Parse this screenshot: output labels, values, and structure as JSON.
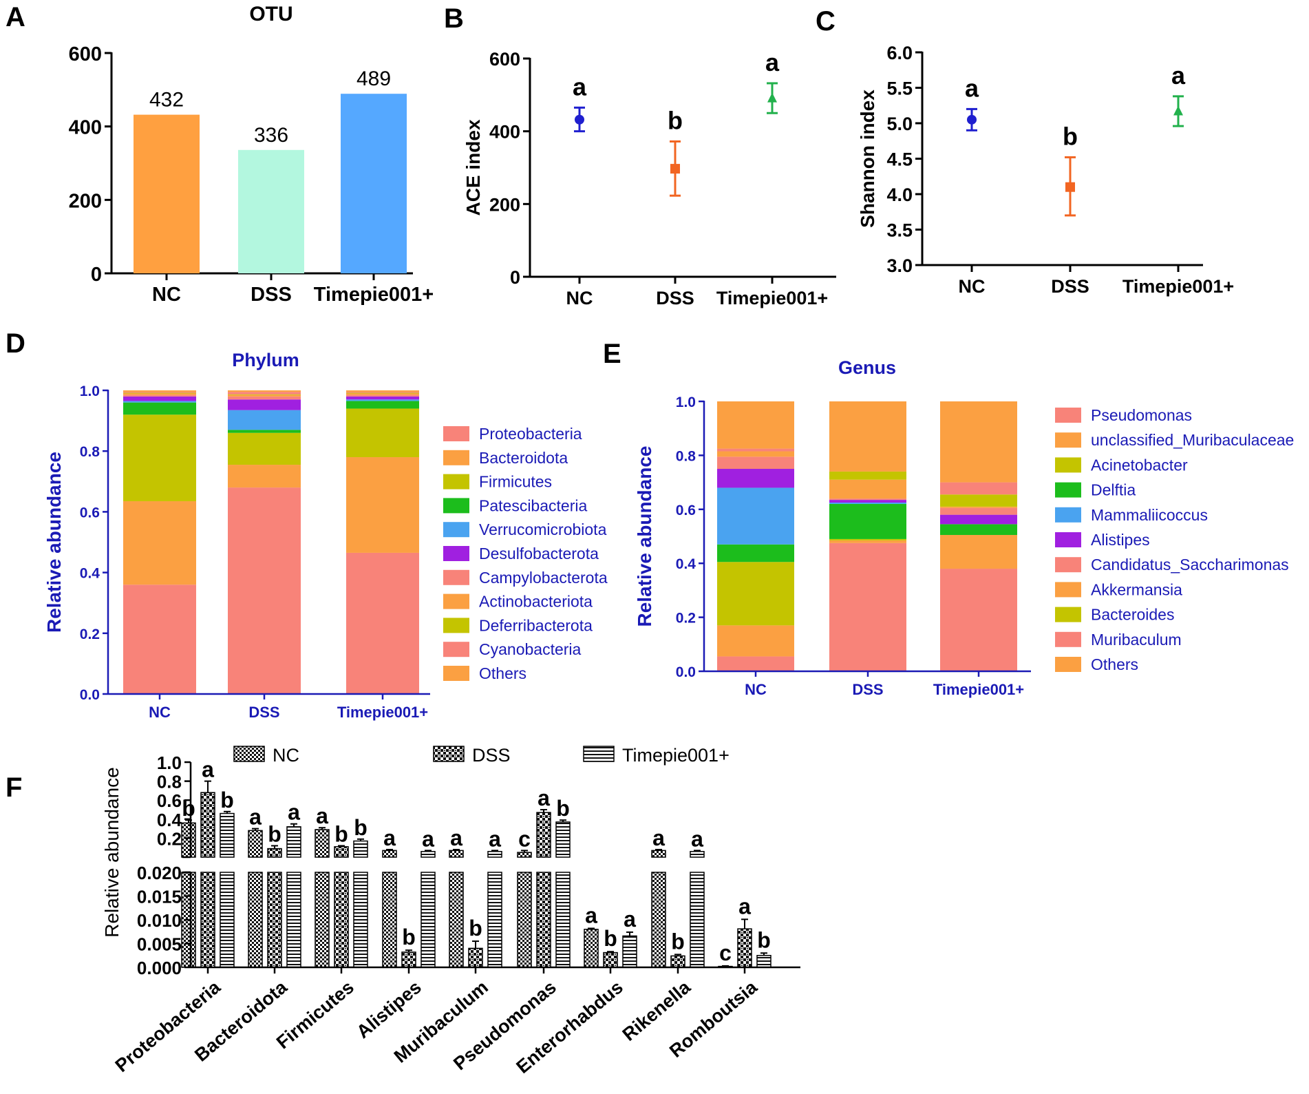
{
  "panel_labels": [
    "A",
    "B",
    "C",
    "D",
    "E",
    "F"
  ],
  "colors": {
    "nc": "#1f1fcf",
    "dss": "#f26522",
    "timepie": "#22b14c",
    "blue_text": "#1a1ab5",
    "proteobacteria": "#f88379",
    "bacteroidota": "#fba042",
    "firmicutes": "#c4c400",
    "patescibacteria": "#1cbd1c",
    "verrucomicrobiota": "#4aa3f0",
    "desulfobacterota": "#a020e0",
    "otu_nc": "#ffa040",
    "otu_dss": "#b3f7df",
    "otu_timepie": "#55a8ff"
  },
  "chart_data": [
    {
      "id": "A",
      "type": "bar",
      "title": "OTU",
      "categories": [
        "NC",
        "DSS",
        "Timepie001+"
      ],
      "values": [
        432,
        336,
        489
      ],
      "data_labels": [
        "432",
        "336",
        "489"
      ],
      "ylim": [
        0,
        600
      ],
      "yticks": [
        0,
        200,
        400,
        600
      ],
      "ylabel": "",
      "xlabel": ""
    },
    {
      "id": "B",
      "type": "scatter",
      "title": "",
      "ylabel": "ACE index",
      "categories": [
        "NC",
        "DSS",
        "Timepie001+"
      ],
      "means": [
        432,
        297,
        491
      ],
      "lower": [
        400,
        223,
        450
      ],
      "upper": [
        465,
        372,
        532
      ],
      "letters": [
        "a",
        "b",
        "a"
      ],
      "markers": [
        "circle",
        "square",
        "triangle"
      ],
      "ylim": [
        0,
        600
      ],
      "yticks": [
        0,
        200,
        400,
        600
      ]
    },
    {
      "id": "C",
      "type": "scatter",
      "title": "",
      "ylabel": "Shannon index",
      "categories": [
        "NC",
        "DSS",
        "Timepie001+"
      ],
      "means": [
        5.05,
        4.1,
        5.17
      ],
      "lower": [
        4.9,
        3.7,
        4.96
      ],
      "upper": [
        5.2,
        4.52,
        5.38
      ],
      "letters": [
        "a",
        "b",
        "a"
      ],
      "markers": [
        "circle",
        "square",
        "triangle"
      ],
      "ylim": [
        3.0,
        6.0
      ],
      "yticks": [
        3.0,
        3.5,
        4.0,
        4.5,
        5.0,
        5.5,
        6.0
      ],
      "ytick_labels": [
        "3.0",
        "3.5",
        "4.0",
        "4.5",
        "5.0",
        "5.5",
        "6.0"
      ]
    },
    {
      "id": "D",
      "type": "bar",
      "stacked": true,
      "title": "Phylum",
      "ylabel": "Relative abundance",
      "categories": [
        "NC",
        "DSS",
        "Timepie001+"
      ],
      "ylim": [
        0,
        1
      ],
      "yticks": [
        0,
        0.2,
        0.4,
        0.6,
        0.8,
        1.0
      ],
      "ytick_labels": [
        "0.0",
        "0.2",
        "0.4",
        "0.6",
        "0.8",
        "1.0"
      ],
      "legend": "right",
      "series": [
        {
          "name": "Proteobacteria",
          "color": "#f88379",
          "values": [
            0.36,
            0.68,
            0.465
          ]
        },
        {
          "name": "Bacteroidota",
          "color": "#fba042",
          "values": [
            0.275,
            0.075,
            0.315
          ]
        },
        {
          "name": "Firmicutes",
          "color": "#c4c400",
          "values": [
            0.285,
            0.105,
            0.16
          ]
        },
        {
          "name": "Patescibacteria",
          "color": "#1cbd1c",
          "values": [
            0.04,
            0.01,
            0.025
          ]
        },
        {
          "name": "Verrucomicrobiota",
          "color": "#4aa3f0",
          "values": [
            0.005,
            0.065,
            0.005
          ]
        },
        {
          "name": "Desulfobacterota",
          "color": "#a020e0",
          "values": [
            0.015,
            0.035,
            0.01
          ]
        },
        {
          "name": "Campylobacterota",
          "color": "#f88379",
          "values": [
            0.005,
            0.01,
            0.005
          ]
        },
        {
          "name": "Actinobacteriota",
          "color": "#fba042",
          "values": [
            0.005,
            0.005,
            0.005
          ]
        },
        {
          "name": "Deferribacterota",
          "color": "#c4c400",
          "values": [
            0.002,
            0.002,
            0.002
          ]
        },
        {
          "name": "Cyanobacteria",
          "color": "#f88379",
          "values": [
            0.003,
            0.008,
            0.003
          ]
        },
        {
          "name": "Others",
          "color": "#fba042",
          "values": [
            0.005,
            0.005,
            0.005
          ]
        }
      ]
    },
    {
      "id": "E",
      "type": "bar",
      "stacked": true,
      "title": "Genus",
      "ylabel": "Relative abundance",
      "categories": [
        "NC",
        "DSS",
        "Timepie001+"
      ],
      "ylim": [
        0,
        1
      ],
      "yticks": [
        0,
        0.2,
        0.4,
        0.6,
        0.8,
        1.0
      ],
      "ytick_labels": [
        "0.0",
        "0.2",
        "0.4",
        "0.6",
        "0.8",
        "1.0"
      ],
      "legend": "right",
      "series": [
        {
          "name": "Pseudomonas",
          "color": "#f88379",
          "values": [
            0.055,
            0.475,
            0.38
          ]
        },
        {
          "name": "unclassified_Muribaculaceae",
          "color": "#fba042",
          "values": [
            0.115,
            0.01,
            0.125
          ]
        },
        {
          "name": "Acinetobacter",
          "color": "#c4c400",
          "values": [
            0.235,
            0.005,
            0.0
          ]
        },
        {
          "name": "Delftia",
          "color": "#1cbd1c",
          "values": [
            0.065,
            0.13,
            0.04
          ]
        },
        {
          "name": "Mammaliicoccus",
          "color": "#4aa3f0",
          "values": [
            0.21,
            0.005,
            0.0
          ]
        },
        {
          "name": "Alistipes",
          "color": "#a020e0",
          "values": [
            0.07,
            0.01,
            0.035
          ]
        },
        {
          "name": "Candidatus_Saccharimonas",
          "color": "#f88379",
          "values": [
            0.045,
            0.005,
            0.025
          ]
        },
        {
          "name": "Akkermansia",
          "color": "#fba042",
          "values": [
            0.02,
            0.07,
            0.005
          ]
        },
        {
          "name": "Bacteroides",
          "color": "#c4c400",
          "values": [
            0.0,
            0.03,
            0.045
          ]
        },
        {
          "name": "Muribaculum",
          "color": "#f88379",
          "values": [
            0.01,
            0.0,
            0.045
          ]
        },
        {
          "name": "Others",
          "color": "#fba042",
          "values": [
            0.175,
            0.26,
            0.3
          ]
        }
      ]
    },
    {
      "id": "F",
      "type": "bar",
      "axis_break": true,
      "ylabel": "Relative abundance",
      "legend": "top",
      "groups": [
        "NC",
        "DSS",
        "Timepie001+"
      ],
      "categories": [
        "Proteobacteria",
        "Bacteroidota",
        "Firmicutes",
        "Alistipes",
        "Muribaculum",
        "Pseudomonas",
        "Enterorhabdus",
        "Rikenella",
        "Romboutsia"
      ],
      "lower_ylim": [
        0,
        0.02
      ],
      "lower_yticks": [
        "0.000",
        "0.005",
        "0.010",
        "0.015",
        "0.020"
      ],
      "upper_ylim": [
        0,
        1.0
      ],
      "upper_yticks": [
        "0.2",
        "0.4",
        "0.6",
        "0.8",
        "1.0"
      ],
      "series": [
        {
          "name": "NC",
          "values": [
            0.36,
            0.28,
            0.29,
            0.07,
            0.07,
            0.05,
            0.008,
            0.07,
            0.0002
          ],
          "errors": [
            0.03,
            0.02,
            0.02,
            0.01,
            0.01,
            0.02,
            0.0002,
            0.01,
            0.0001
          ],
          "letters": [
            "b",
            "a",
            "a",
            "a",
            "a",
            "c",
            "a",
            "a",
            "c"
          ]
        },
        {
          "name": "DSS",
          "values": [
            0.68,
            0.09,
            0.11,
            0.0032,
            0.004,
            0.47,
            0.0031,
            0.0024,
            0.0081
          ],
          "errors": [
            0.12,
            0.03,
            0.01,
            0.0004,
            0.0015,
            0.03,
            0.0002,
            0.0003,
            0.002
          ],
          "letters": [
            "a",
            "b",
            "b",
            "b",
            "b",
            "a",
            "b",
            "b",
            "a"
          ]
        },
        {
          "name": "Timepie001+",
          "values": [
            0.46,
            0.32,
            0.17,
            0.06,
            0.06,
            0.37,
            0.0066,
            0.06,
            0.0025
          ],
          "errors": [
            0.02,
            0.03,
            0.02,
            0.01,
            0.01,
            0.02,
            0.0008,
            0.01,
            0.0005
          ],
          "letters": [
            "b",
            "a",
            "b",
            "a",
            "a",
            "b",
            "a",
            "a",
            "b"
          ]
        }
      ]
    }
  ]
}
